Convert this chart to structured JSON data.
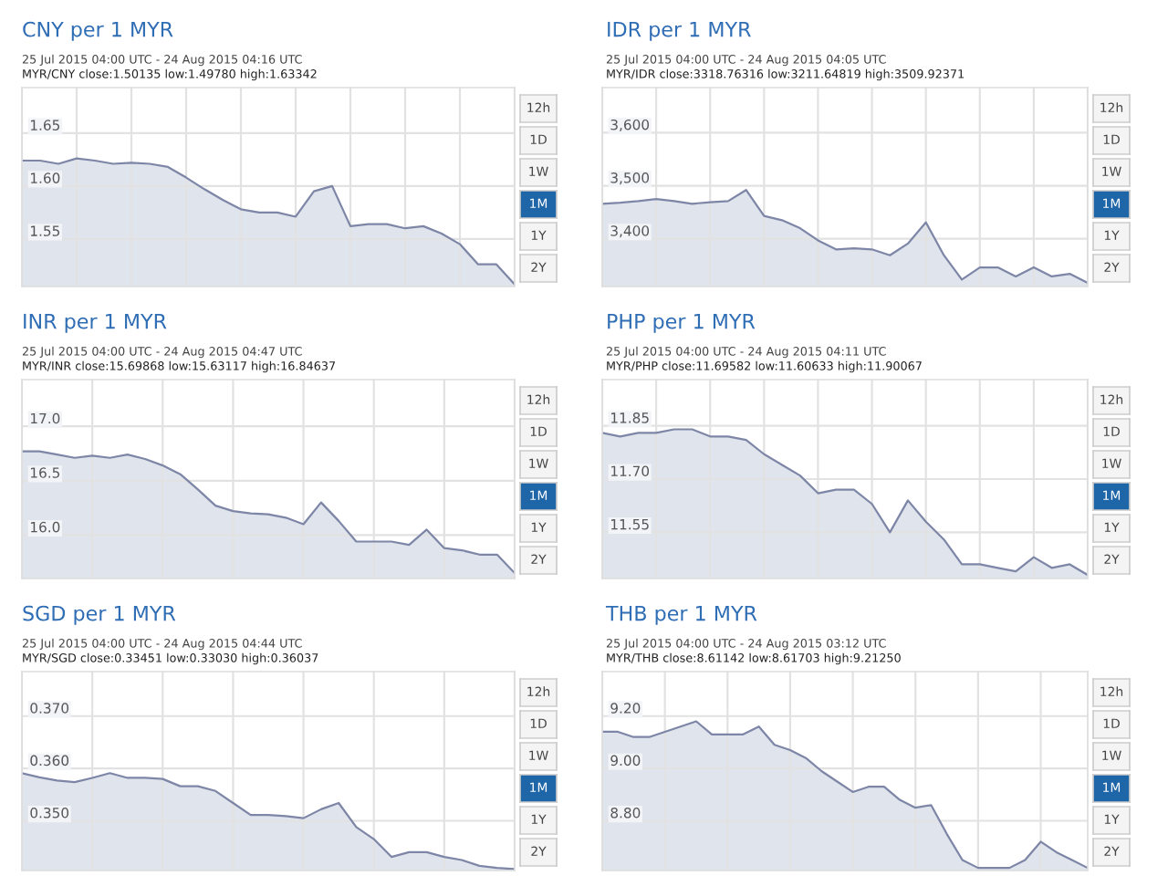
{
  "chart_data": [
    {
      "type": "area",
      "title": "CNY per 1 MYR",
      "subtitle": "25 Jul 2015 04:00 UTC - 24 Aug 2015 04:16 UTC",
      "annotations": [
        "MYR/CNY close:1.50135 low:1.49780 high:1.63342",
        "12h",
        "1D",
        "1W",
        "1M",
        "1Y",
        "2Y"
      ],
      "color": "#7d86a6",
      "grid": true,
      "tick_labels": "y",
      "ylim": [
        1.505,
        1.693
      ],
      "yticks": [
        {
          "value": 1.65,
          "label": "1.65"
        },
        {
          "value": 1.6,
          "label": "1.60"
        },
        1.55
      ],
      "categories": [
        null,
        null,
        null,
        null,
        null,
        null,
        null,
        null,
        null,
        null,
        null,
        null,
        null,
        null,
        null,
        null,
        null,
        null,
        null,
        null,
        null,
        null,
        null,
        null,
        null,
        null,
        null,
        null
      ],
      "values": [
        1.624,
        1.624,
        1.621,
        1.626,
        1.624,
        1.621,
        1.622,
        1.621,
        1.618,
        1.608,
        1.597,
        1.587,
        1.578,
        1.575,
        1.575,
        1.571,
        1.595,
        1.6,
        1.562,
        1.564,
        1.564,
        1.56,
        1.562,
        1.555,
        1.545,
        1.526,
        1.526,
        1.507
      ]
    },
    {
      "type": "area",
      "title": "IDR per 1 MYR",
      "subtitle": "25 Jul 2015 04:00 UTC - 24 Aug 2015 04:05 UTC",
      "annotations": [
        "MYR/IDR close:3318.76316 low:3211.64819 high:3509.92371",
        "12h",
        "1D",
        "1W",
        "1M",
        "1Y",
        "2Y"
      ],
      "color": "#7d86a6",
      "grid": true,
      "tick_labels": "y",
      "ylim": [
        3310,
        3685
      ],
      "yticks": [
        {
          "value": 3600,
          "label": "3,600"
        },
        {
          "value": 3500,
          "label": "3,500"
        },
        {
          "value": 3400,
          "label": "3,400"
        }
      ],
      "categories": [
        null,
        null,
        null,
        null,
        null,
        null,
        null,
        null,
        null,
        null,
        null,
        null,
        null,
        null,
        null,
        null,
        null,
        null,
        null,
        null,
        null,
        null,
        null,
        null,
        null,
        null,
        null,
        null
      ],
      "values": [
        3466,
        3468,
        3471,
        3475,
        3471,
        3466,
        3469,
        3471,
        3492,
        3443,
        3435,
        3420,
        3397,
        3380,
        3382,
        3380,
        3369,
        3391,
        3431,
        3369,
        3323,
        3346,
        3346,
        3329,
        3346,
        3329,
        3334,
        3317
      ]
    },
    {
      "type": "area",
      "title": "INR per 1 MYR",
      "subtitle": "25 Jul 2015 04:00 UTC - 24 Aug 2015 04:47 UTC",
      "annotations": [
        "MYR/INR close:15.69868 low:15.63117 high:16.84637",
        "12h",
        "1D",
        "1W",
        "1M",
        "1Y",
        "2Y"
      ],
      "color": "#7d86a6",
      "grid": true,
      "tick_labels": "y",
      "ylim": [
        15.6,
        17.43
      ],
      "yticks": [
        {
          "value": 17.0,
          "label": "17.0"
        },
        16.5,
        {
          "value": 16.0,
          "label": "16.0"
        }
      ],
      "categories": [
        null,
        null,
        null,
        null,
        null,
        null,
        null,
        null,
        null,
        null,
        null,
        null,
        null,
        null,
        null,
        null,
        null,
        null,
        null,
        null,
        null,
        null,
        null,
        null,
        null,
        null,
        null,
        null,
        null
      ],
      "values": [
        16.77,
        16.77,
        16.74,
        16.71,
        16.73,
        16.71,
        16.74,
        16.7,
        16.64,
        16.56,
        16.42,
        16.27,
        16.22,
        16.2,
        16.19,
        16.16,
        16.1,
        16.3,
        16.13,
        15.94,
        15.94,
        15.94,
        15.91,
        16.05,
        15.88,
        15.86,
        15.82,
        15.82,
        15.65
      ]
    },
    {
      "type": "area",
      "title": "PHP per 1 MYR",
      "subtitle": "25 Jul 2015 04:00 UTC - 24 Aug 2015 04:11 UTC",
      "annotations": [
        "MYR/PHP close:11.69582 low:11.60633 high:11.90067",
        "12h",
        "1D",
        "1W",
        "1M",
        "1Y",
        "2Y"
      ],
      "color": "#7d86a6",
      "grid": true,
      "tick_labels": "y",
      "ylim": [
        11.42,
        11.98
      ],
      "yticks": [
        11.85,
        {
          "value": 11.7,
          "label": "11.70"
        },
        11.55
      ],
      "categories": [
        null,
        null,
        null,
        null,
        null,
        null,
        null,
        null,
        null,
        null,
        null,
        null,
        null,
        null,
        null,
        null,
        null,
        null,
        null,
        null,
        null,
        null,
        null,
        null,
        null,
        null,
        null,
        null
      ],
      "values": [
        11.83,
        11.82,
        11.83,
        11.83,
        11.84,
        11.84,
        11.82,
        11.82,
        11.81,
        11.77,
        11.74,
        11.71,
        11.66,
        11.67,
        11.67,
        11.63,
        11.55,
        11.64,
        11.58,
        11.53,
        11.46,
        11.46,
        11.45,
        11.44,
        11.48,
        11.45,
        11.46,
        11.43
      ]
    },
    {
      "type": "area",
      "title": "SGD per 1 MYR",
      "subtitle": "25 Jul 2015 04:00 UTC - 24 Aug 2015 04:44 UTC",
      "annotations": [
        "MYR/SGD close:0.33451 low:0.33030 high:0.36037",
        "12h",
        "1D",
        "1W",
        "1M",
        "1Y",
        "2Y"
      ],
      "color": "#7d86a6",
      "grid": true,
      "tick_labels": "y",
      "ylim": [
        0.3405,
        0.3785
      ],
      "yticks": [
        {
          "value": 0.37,
          "label": "0.370"
        },
        {
          "value": 0.36,
          "label": "0.360"
        },
        {
          "value": 0.35,
          "label": "0.350"
        }
      ],
      "categories": [
        null,
        null,
        null,
        null,
        null,
        null,
        null,
        null,
        null,
        null,
        null,
        null,
        null,
        null,
        null,
        null,
        null,
        null,
        null,
        null,
        null,
        null,
        null,
        null,
        null,
        null,
        null,
        null,
        null
      ],
      "values": [
        0.3591,
        0.3583,
        0.3577,
        0.3574,
        0.3582,
        0.3591,
        0.3582,
        0.3582,
        0.358,
        0.3566,
        0.3566,
        0.3557,
        0.3534,
        0.3511,
        0.3511,
        0.3509,
        0.3505,
        0.3522,
        0.3534,
        0.3488,
        0.3465,
        0.3431,
        0.344,
        0.344,
        0.3431,
        0.3425,
        0.3414,
        0.341,
        0.3408
      ]
    },
    {
      "type": "area",
      "title": "THB per 1 MYR",
      "subtitle": "25 Jul 2015 04:00 UTC - 24 Aug 2015 03:12 UTC",
      "annotations": [
        "MYR/THB close:8.61142 low:8.61703 high:9.21250",
        "12h",
        "1D",
        "1W",
        "1M",
        "1Y",
        "2Y"
      ],
      "color": "#7d86a6",
      "grid": true,
      "tick_labels": "y",
      "ylim": [
        8.61,
        9.37
      ],
      "yticks": [
        {
          "value": 9.2,
          "label": "9.20"
        },
        {
          "value": 9.0,
          "label": "9.00"
        },
        {
          "value": 8.8,
          "label": "8.80"
        }
      ],
      "categories": [
        null,
        null,
        null,
        null,
        null,
        null,
        null,
        null,
        null,
        null,
        null,
        null,
        null,
        null,
        null,
        null,
        null,
        null,
        null,
        null,
        null,
        null,
        null,
        null,
        null,
        null,
        null,
        null,
        null,
        null,
        null,
        null
      ],
      "values": [
        9.14,
        9.14,
        9.12,
        9.12,
        9.14,
        9.16,
        9.18,
        9.13,
        9.13,
        9.13,
        9.16,
        9.09,
        9.07,
        9.04,
        8.99,
        8.95,
        8.91,
        8.93,
        8.93,
        8.88,
        8.85,
        8.86,
        8.75,
        8.65,
        8.62,
        8.62,
        8.62,
        8.65,
        8.72,
        8.68,
        8.65,
        8.62
      ]
    }
  ]
}
